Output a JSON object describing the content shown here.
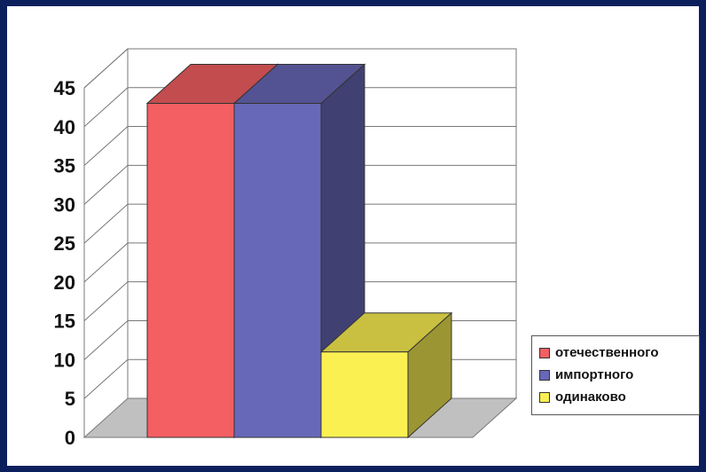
{
  "chart_data": {
    "type": "bar",
    "categories": [
      "отечественного",
      "импортного",
      "одинаково"
    ],
    "values": [
      43,
      43,
      11
    ],
    "colors": [
      "#f35f62",
      "#6868b8",
      "#fbf052"
    ],
    "ylim": [
      0,
      45
    ],
    "yticks": [
      "0",
      "5",
      "10",
      "15",
      "20",
      "25",
      "30",
      "35",
      "40",
      "45"
    ],
    "grid": true,
    "legend_position": "right",
    "three_d": true
  },
  "legend": {
    "items": [
      {
        "label": "отечественного",
        "color": "#f35f62"
      },
      {
        "label": "импортного",
        "color": "#6868b8"
      },
      {
        "label": "одинаково",
        "color": "#fbf052"
      }
    ]
  }
}
